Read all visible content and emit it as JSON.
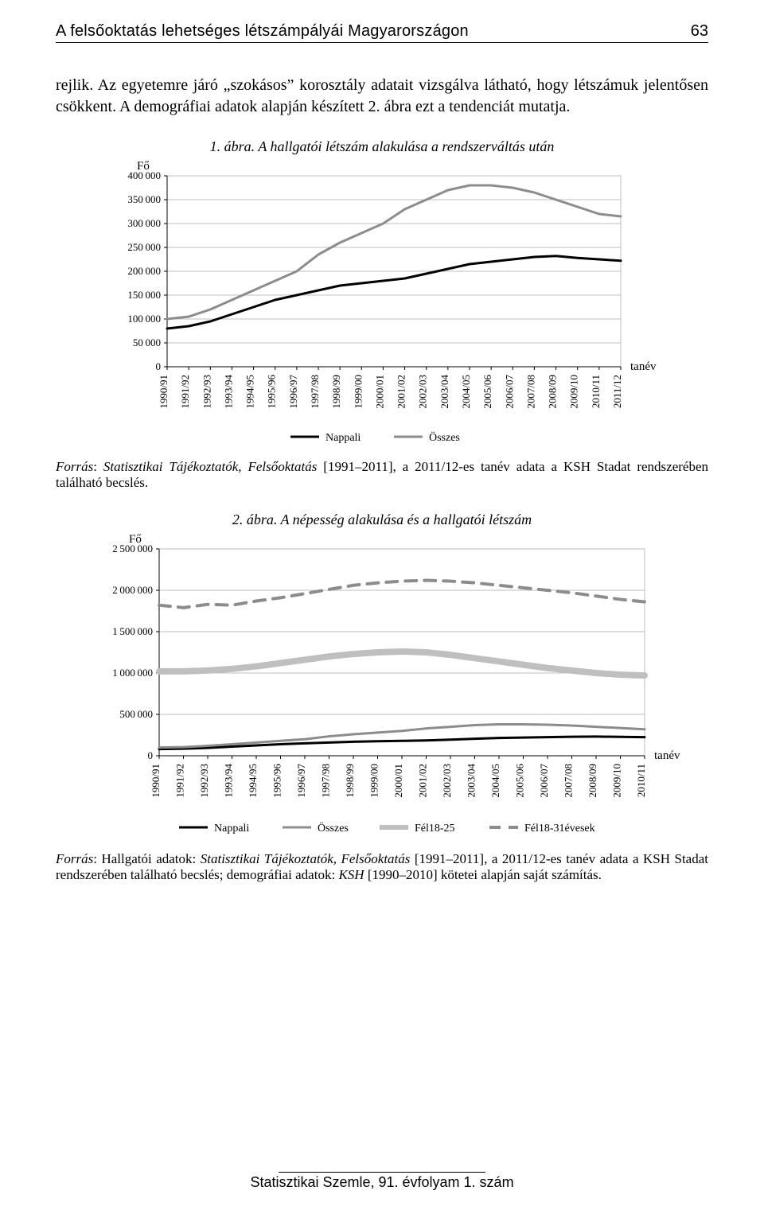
{
  "header": {
    "running_title": "A felsőoktatás lehetséges létszámpályái Magyarországon",
    "page_number": "63"
  },
  "paragraph": "rejlik. Az egyetemre járó „szokásos” korosztály adatait vizsgálva látható, hogy létszámuk jelentősen csökkent. A demográfiai adatok alapján készített 2. ábra ezt a tendenciát mutatja.",
  "fig1": {
    "title": "1. ábra. A hallgatói létszám alakulása a rendszerváltás után",
    "type": "line",
    "y_axis_label": "Fő",
    "x_axis_label": "tanév",
    "categories": [
      "1990/91",
      "1991/92",
      "1992/93",
      "1993/94",
      "1994/95",
      "1995/96",
      "1996/97",
      "1997/98",
      "1998/99",
      "1999/00",
      "2000/01",
      "2001/02",
      "2002/03",
      "2003/04",
      "2004/05",
      "2005/06",
      "2006/07",
      "2007/08",
      "2008/09",
      "2009/10",
      "2010/11",
      "2011/12"
    ],
    "series": [
      {
        "name": "Nappali",
        "color": "#000000",
        "width": 3,
        "values": [
          80000,
          85000,
          95000,
          110000,
          125000,
          140000,
          150000,
          160000,
          170000,
          175000,
          180000,
          185000,
          195000,
          205000,
          215000,
          220000,
          225000,
          230000,
          232000,
          228000,
          225000,
          222000
        ]
      },
      {
        "name": "Összes",
        "color": "#8c8c8c",
        "width": 3,
        "values": [
          100000,
          105000,
          120000,
          140000,
          160000,
          180000,
          200000,
          235000,
          260000,
          280000,
          300000,
          330000,
          350000,
          370000,
          380000,
          380000,
          375000,
          365000,
          350000,
          335000,
          320000,
          315000
        ]
      }
    ],
    "ylim": [
      0,
      400000
    ],
    "ytick_step": 50000,
    "legend": [
      "Nappali",
      "Összes"
    ],
    "source": "Forrás: Statisztikai Tájékoztatók, Felsőoktatás [1991–2011], a 2011/12-es tanév adata a KSH Stadat rendszerében található becslés.",
    "background_color": "#ffffff",
    "grid_color": "#bfbfbf",
    "tick_fontsize": 13
  },
  "fig2": {
    "title": "2. ábra. A népesség alakulása és a hallgatói létszám",
    "type": "line",
    "y_axis_label": "Fő",
    "x_axis_label": "tanév",
    "categories": [
      "1990/91",
      "1991/92",
      "1992/93",
      "1993/94",
      "1994/95",
      "1995/96",
      "1996/97",
      "1997/98",
      "1998/99",
      "1999/00",
      "2000/01",
      "2001/02",
      "2002/03",
      "2003/04",
      "2004/05",
      "2005/06",
      "2006/07",
      "2007/08",
      "2008/09",
      "2009/10",
      "2010/11"
    ],
    "series": [
      {
        "name": "Nappali",
        "color": "#000000",
        "width": 3,
        "dash": null,
        "values": [
          80000,
          85000,
          95000,
          110000,
          125000,
          140000,
          150000,
          160000,
          170000,
          175000,
          180000,
          185000,
          195000,
          205000,
          215000,
          220000,
          225000,
          230000,
          232000,
          228000,
          225000
        ]
      },
      {
        "name": "Összes",
        "color": "#8c8c8c",
        "width": 3,
        "dash": null,
        "values": [
          100000,
          105000,
          120000,
          140000,
          160000,
          180000,
          200000,
          235000,
          260000,
          280000,
          300000,
          330000,
          350000,
          370000,
          380000,
          380000,
          375000,
          365000,
          350000,
          335000,
          320000
        ]
      },
      {
        "name": "Fél18-25",
        "color": "#bfbfbf",
        "width": 8,
        "dash": null,
        "values": [
          1020000,
          1020000,
          1030000,
          1050000,
          1080000,
          1120000,
          1160000,
          1200000,
          1230000,
          1250000,
          1260000,
          1250000,
          1220000,
          1180000,
          1140000,
          1100000,
          1060000,
          1030000,
          1000000,
          980000,
          970000
        ]
      },
      {
        "name": "Fél18-31évesek",
        "color": "#8c8c8c",
        "width": 4,
        "dash": "14 10",
        "values": [
          1820000,
          1790000,
          1830000,
          1820000,
          1870000,
          1910000,
          1960000,
          2010000,
          2060000,
          2090000,
          2110000,
          2120000,
          2110000,
          2090000,
          2060000,
          2030000,
          2000000,
          1970000,
          1930000,
          1890000,
          1860000
        ]
      }
    ],
    "ylim": [
      0,
      2500000
    ],
    "ytick_step": 500000,
    "legend": [
      "Nappali",
      "Összes",
      "Fél18-25",
      "Fél18-31évesek"
    ],
    "source": "Forrás: Hallgatói adatok: Statisztikai Tájékoztatók, Felsőoktatás [1991–2011], a 2011/12-es tanév adata a KSH Stadat rendszerében található becslés; demográfiai adatok: KSH [1990–2010] kötetei alapján saját számítás.",
    "background_color": "#ffffff",
    "grid_color": "#bfbfbf",
    "tick_fontsize": 13
  },
  "footer": {
    "text": "Statisztikai Szemle, 91. évfolyam 1. szám"
  }
}
